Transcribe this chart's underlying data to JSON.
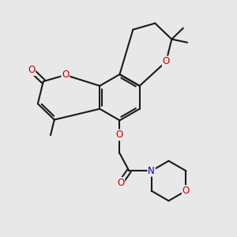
{
  "bg": "#e8e8e8",
  "bc": "#1a1a1a",
  "oc": "#cc0000",
  "nc": "#0000cc",
  "lw": 1.5,
  "fs": 8.5,
  "xlim": [
    0,
    10
  ],
  "ylim": [
    0,
    10
  ]
}
